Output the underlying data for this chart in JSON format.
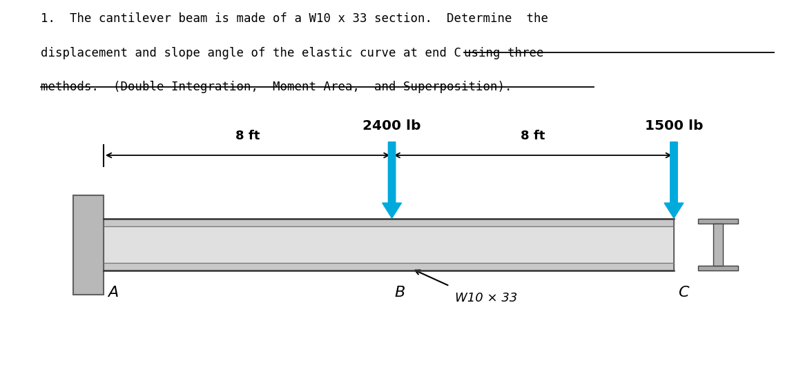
{
  "bg_color": "#ffffff",
  "text_color": "#000000",
  "arrow_color": "#00aadd",
  "line1": "1.  The cantilever beam is made of a W10 x 33 section.  Determine  the",
  "line2_normal": "displacement and slope angle of the elastic curve at end C ",
  "line2_underline": "using three",
  "line3_underline": "methods.  (Double Integration,  Moment Area,  and Superposition).",
  "load1_label": "2400 lb",
  "load2_label": "1500 lb",
  "dim1_label": "8 ft",
  "dim2_label": "8 ft",
  "label_A": "A",
  "label_B": "B",
  "label_C": "C",
  "label_section": "W10 × 33"
}
